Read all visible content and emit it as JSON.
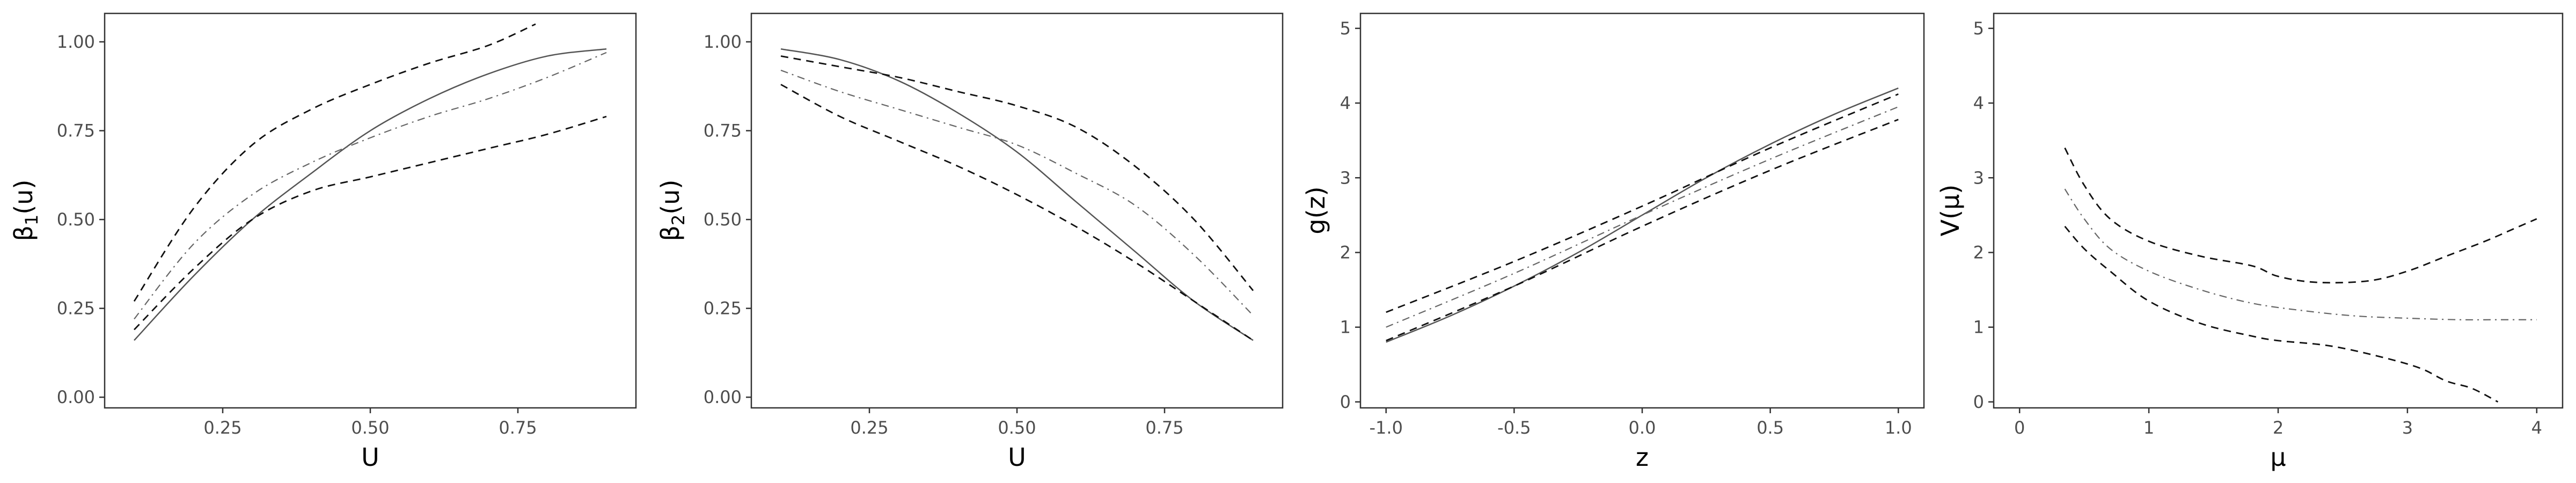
{
  "chart_data": [
    {
      "type": "line",
      "xlabel": "U",
      "ylabel": "β1(u)",
      "ylabel_sub": "1",
      "xlim": [
        0.05,
        0.95
      ],
      "ylim": [
        -0.03,
        1.08
      ],
      "xticks": [
        0.25,
        0.5,
        0.75
      ],
      "xtick_labels": [
        "0.25",
        "0.50",
        "0.75"
      ],
      "yticks": [
        0,
        0.25,
        0.5,
        0.75,
        1
      ],
      "ytick_labels": [
        "0.00",
        "0.25",
        "0.50",
        "0.75",
        "1.00"
      ],
      "grid": false,
      "series": [
        {
          "style": "solid",
          "x": [
            0.1,
            0.2,
            0.3,
            0.4,
            0.5,
            0.6,
            0.7,
            0.8,
            0.9
          ],
          "y": [
            0.16,
            0.34,
            0.5,
            0.63,
            0.75,
            0.84,
            0.91,
            0.96,
            0.98
          ]
        },
        {
          "style": "dashdot",
          "x": [
            0.1,
            0.2,
            0.3,
            0.4,
            0.5,
            0.6,
            0.7,
            0.8,
            0.9
          ],
          "y": [
            0.22,
            0.43,
            0.57,
            0.66,
            0.73,
            0.79,
            0.84,
            0.9,
            0.97
          ]
        },
        {
          "style": "dashed",
          "x": [
            0.1,
            0.2,
            0.3,
            0.4,
            0.5,
            0.6,
            0.7,
            0.78
          ],
          "y": [
            0.27,
            0.53,
            0.71,
            0.81,
            0.88,
            0.94,
            0.99,
            1.05
          ]
        },
        {
          "style": "dashed",
          "x": [
            0.1,
            0.2,
            0.3,
            0.4,
            0.5,
            0.6,
            0.7,
            0.8,
            0.9
          ],
          "y": [
            0.19,
            0.36,
            0.5,
            0.58,
            0.62,
            0.66,
            0.7,
            0.74,
            0.79
          ]
        }
      ]
    },
    {
      "type": "line",
      "xlabel": "U",
      "ylabel": "β2(u)",
      "ylabel_sub": "2",
      "xlim": [
        0.05,
        0.95
      ],
      "ylim": [
        -0.03,
        1.08
      ],
      "xticks": [
        0.25,
        0.5,
        0.75
      ],
      "xtick_labels": [
        "0.25",
        "0.50",
        "0.75"
      ],
      "yticks": [
        0,
        0.25,
        0.5,
        0.75,
        1
      ],
      "ytick_labels": [
        "0.00",
        "0.25",
        "0.50",
        "0.75",
        "1.00"
      ],
      "grid": false,
      "series": [
        {
          "style": "solid",
          "x": [
            0.1,
            0.2,
            0.3,
            0.4,
            0.5,
            0.6,
            0.7,
            0.8,
            0.9
          ],
          "y": [
            0.98,
            0.95,
            0.89,
            0.8,
            0.69,
            0.55,
            0.41,
            0.27,
            0.16
          ]
        },
        {
          "style": "dashdot",
          "x": [
            0.1,
            0.2,
            0.3,
            0.4,
            0.5,
            0.6,
            0.7,
            0.8,
            0.9
          ],
          "y": [
            0.92,
            0.86,
            0.81,
            0.76,
            0.71,
            0.63,
            0.54,
            0.4,
            0.23
          ]
        },
        {
          "style": "dashed",
          "x": [
            0.1,
            0.2,
            0.3,
            0.4,
            0.5,
            0.6,
            0.7,
            0.8,
            0.9
          ],
          "y": [
            0.96,
            0.93,
            0.9,
            0.86,
            0.82,
            0.76,
            0.65,
            0.5,
            0.3
          ]
        },
        {
          "style": "dashed",
          "x": [
            0.1,
            0.2,
            0.3,
            0.4,
            0.5,
            0.6,
            0.7,
            0.8,
            0.9
          ],
          "y": [
            0.88,
            0.79,
            0.72,
            0.65,
            0.57,
            0.48,
            0.38,
            0.27,
            0.16
          ]
        }
      ]
    },
    {
      "type": "line",
      "xlabel": "z",
      "ylabel": "g(z)",
      "ylabel_sub": "",
      "xlim": [
        -1.1,
        1.1
      ],
      "ylim": [
        -0.08,
        5.2
      ],
      "xticks": [
        -1,
        -0.5,
        0,
        0.5,
        1
      ],
      "xtick_labels": [
        "-1.0",
        "-0.5",
        "0.0",
        "0.5",
        "1.0"
      ],
      "yticks": [
        0,
        1,
        2,
        3,
        4,
        5
      ],
      "ytick_labels": [
        "0",
        "1",
        "2",
        "3",
        "4",
        "5"
      ],
      "grid": false,
      "series": [
        {
          "style": "solid",
          "x": [
            -1,
            -0.75,
            -0.5,
            -0.25,
            0,
            0.25,
            0.5,
            0.75,
            1
          ],
          "y": [
            0.8,
            1.15,
            1.55,
            2.0,
            2.5,
            3.0,
            3.45,
            3.85,
            4.2
          ]
        },
        {
          "style": "dashdot",
          "x": [
            -1,
            -0.5,
            0,
            0.5,
            1
          ],
          "y": [
            1.0,
            1.72,
            2.5,
            3.25,
            3.95
          ]
        },
        {
          "style": "dashed",
          "x": [
            -1,
            -0.5,
            0,
            0.5,
            1
          ],
          "y": [
            1.2,
            1.88,
            2.62,
            3.4,
            4.12
          ]
        },
        {
          "style": "dashed",
          "x": [
            -1,
            -0.5,
            0,
            0.5,
            1
          ],
          "y": [
            0.82,
            1.55,
            2.35,
            3.1,
            3.78
          ]
        }
      ]
    },
    {
      "type": "line",
      "xlabel": "μ",
      "ylabel": "V(μ)",
      "ylabel_sub": "",
      "xlim": [
        -0.2,
        4.2
      ],
      "ylim": [
        -0.08,
        5.2
      ],
      "xticks": [
        0,
        1,
        2,
        3,
        4
      ],
      "xtick_labels": [
        "0",
        "1",
        "2",
        "3",
        "4"
      ],
      "yticks": [
        0,
        1,
        2,
        3,
        4,
        5
      ],
      "ytick_labels": [
        "0",
        "1",
        "2",
        "3",
        "4",
        "5"
      ],
      "grid": false,
      "series": [
        {
          "style": "dashdot",
          "x": [
            0.35,
            0.5,
            0.7,
            1.0,
            1.4,
            1.8,
            2.2,
            2.6,
            3.0,
            3.4,
            3.7,
            4.0
          ],
          "y": [
            2.85,
            2.45,
            2.05,
            1.75,
            1.5,
            1.32,
            1.22,
            1.15,
            1.12,
            1.1,
            1.1,
            1.1
          ]
        },
        {
          "style": "dashed",
          "x": [
            0.35,
            0.5,
            0.7,
            1.0,
            1.4,
            1.8,
            2.0,
            2.3,
            2.7,
            3.0,
            3.3,
            3.6,
            3.8,
            4.0
          ],
          "y": [
            3.4,
            2.9,
            2.45,
            2.15,
            1.95,
            1.82,
            1.68,
            1.6,
            1.62,
            1.75,
            1.95,
            2.15,
            2.3,
            2.45
          ]
        },
        {
          "style": "dashed",
          "x": [
            0.35,
            0.5,
            0.7,
            1.0,
            1.4,
            1.8,
            2.0,
            2.4,
            2.8,
            3.1,
            3.3,
            3.5,
            3.7
          ],
          "y": [
            2.35,
            2.05,
            1.75,
            1.35,
            1.05,
            0.88,
            0.82,
            0.75,
            0.6,
            0.45,
            0.28,
            0.18,
            0.0
          ]
        }
      ]
    }
  ]
}
